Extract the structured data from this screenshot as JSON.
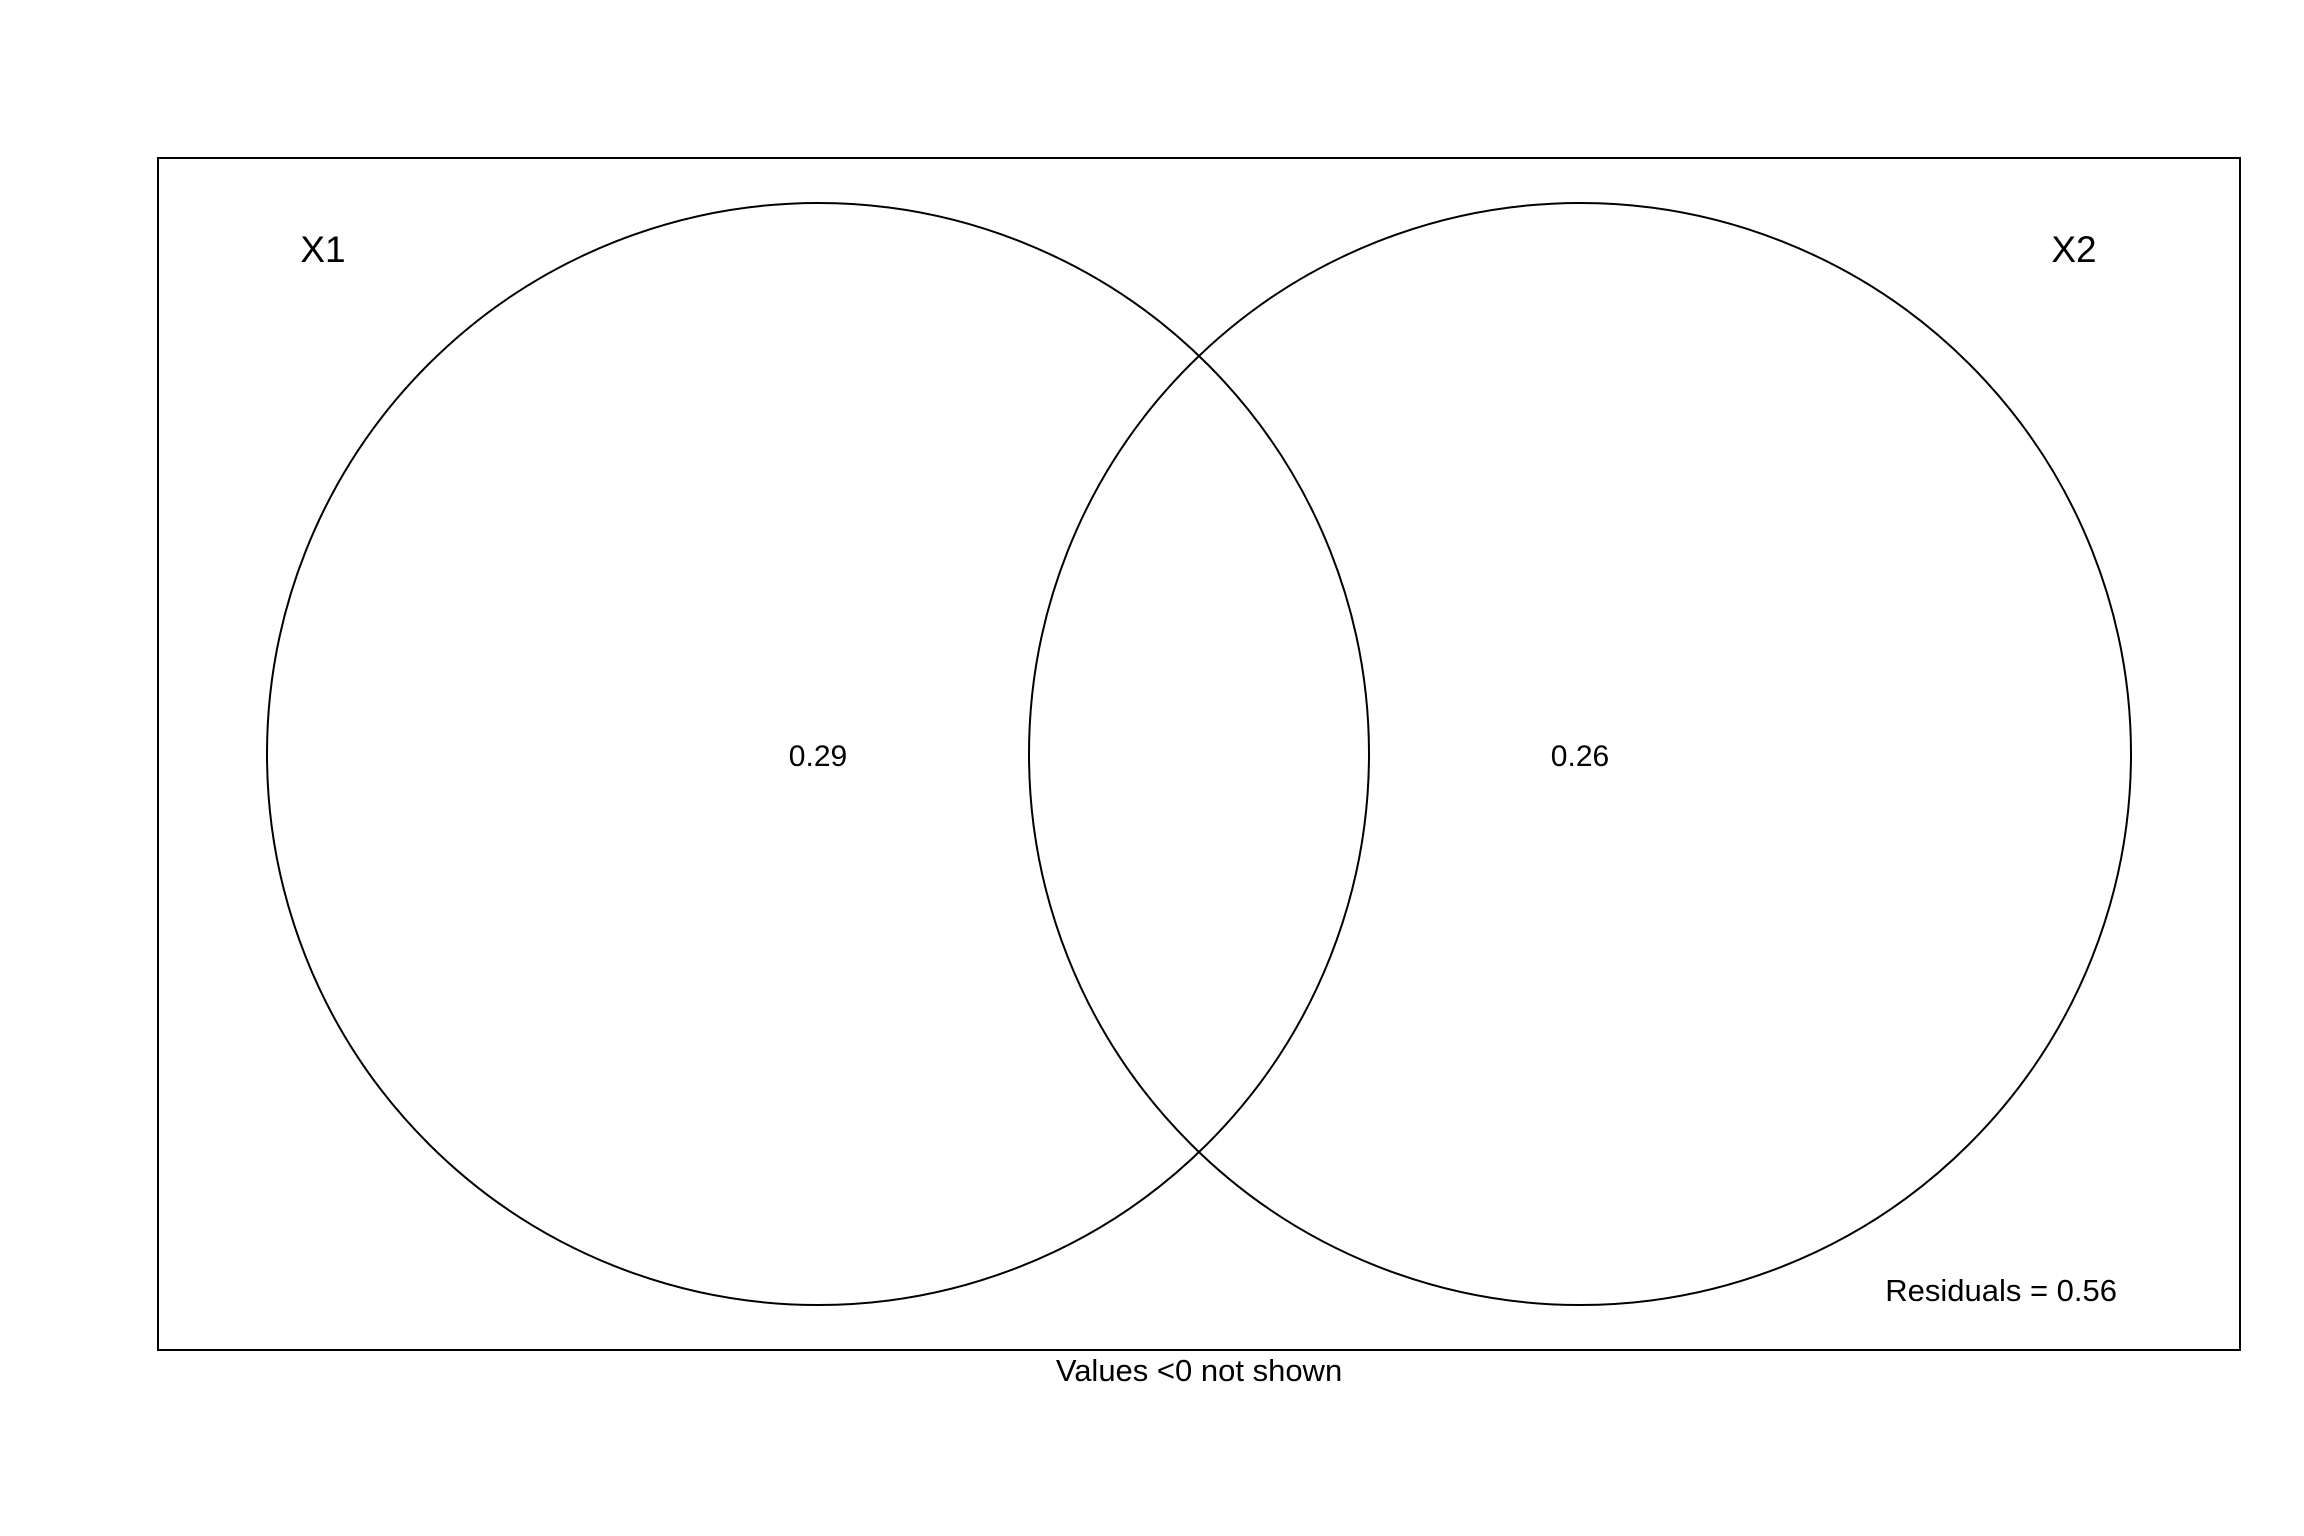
{
  "diagram": {
    "type": "venn",
    "sets": [
      {
        "label": "X1",
        "value": "0.29"
      },
      {
        "label": "X2",
        "value": "0.26"
      }
    ],
    "residuals_text": "Residuals = 0.56",
    "footnote": "Values <0 not shown",
    "stroke_color": "#000000",
    "background_color": "#ffffff"
  }
}
